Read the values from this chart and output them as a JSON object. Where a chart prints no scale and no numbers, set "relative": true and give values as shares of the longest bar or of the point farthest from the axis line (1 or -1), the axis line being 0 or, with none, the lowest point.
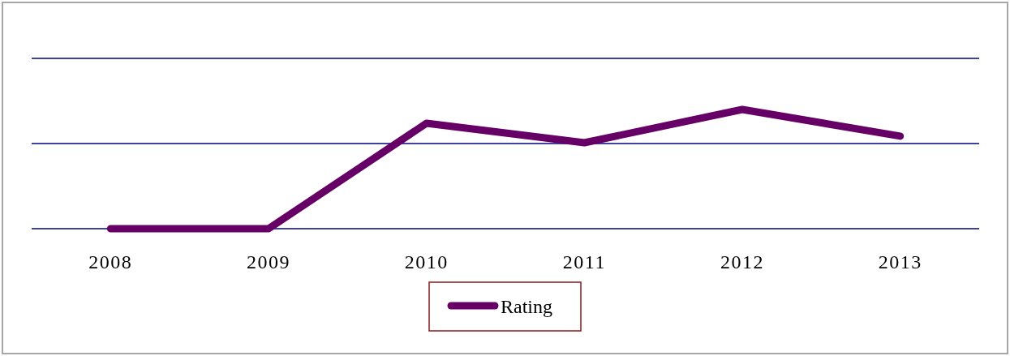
{
  "chart_data": {
    "type": "line",
    "relative": true,
    "categories": [
      "2008",
      "2009",
      "2010",
      "2011",
      "2012",
      "2013"
    ],
    "series": [
      {
        "name": "Rating",
        "color": "#660066",
        "values": [
          0,
          0,
          0.884,
          0.721,
          1,
          0.776
        ]
      }
    ],
    "ref_lines": [
      {
        "axis": "y",
        "value": 0.714,
        "color": "#000080"
      }
    ],
    "legend": "bottom",
    "marker": "none",
    "line_style": "solid"
  }
}
